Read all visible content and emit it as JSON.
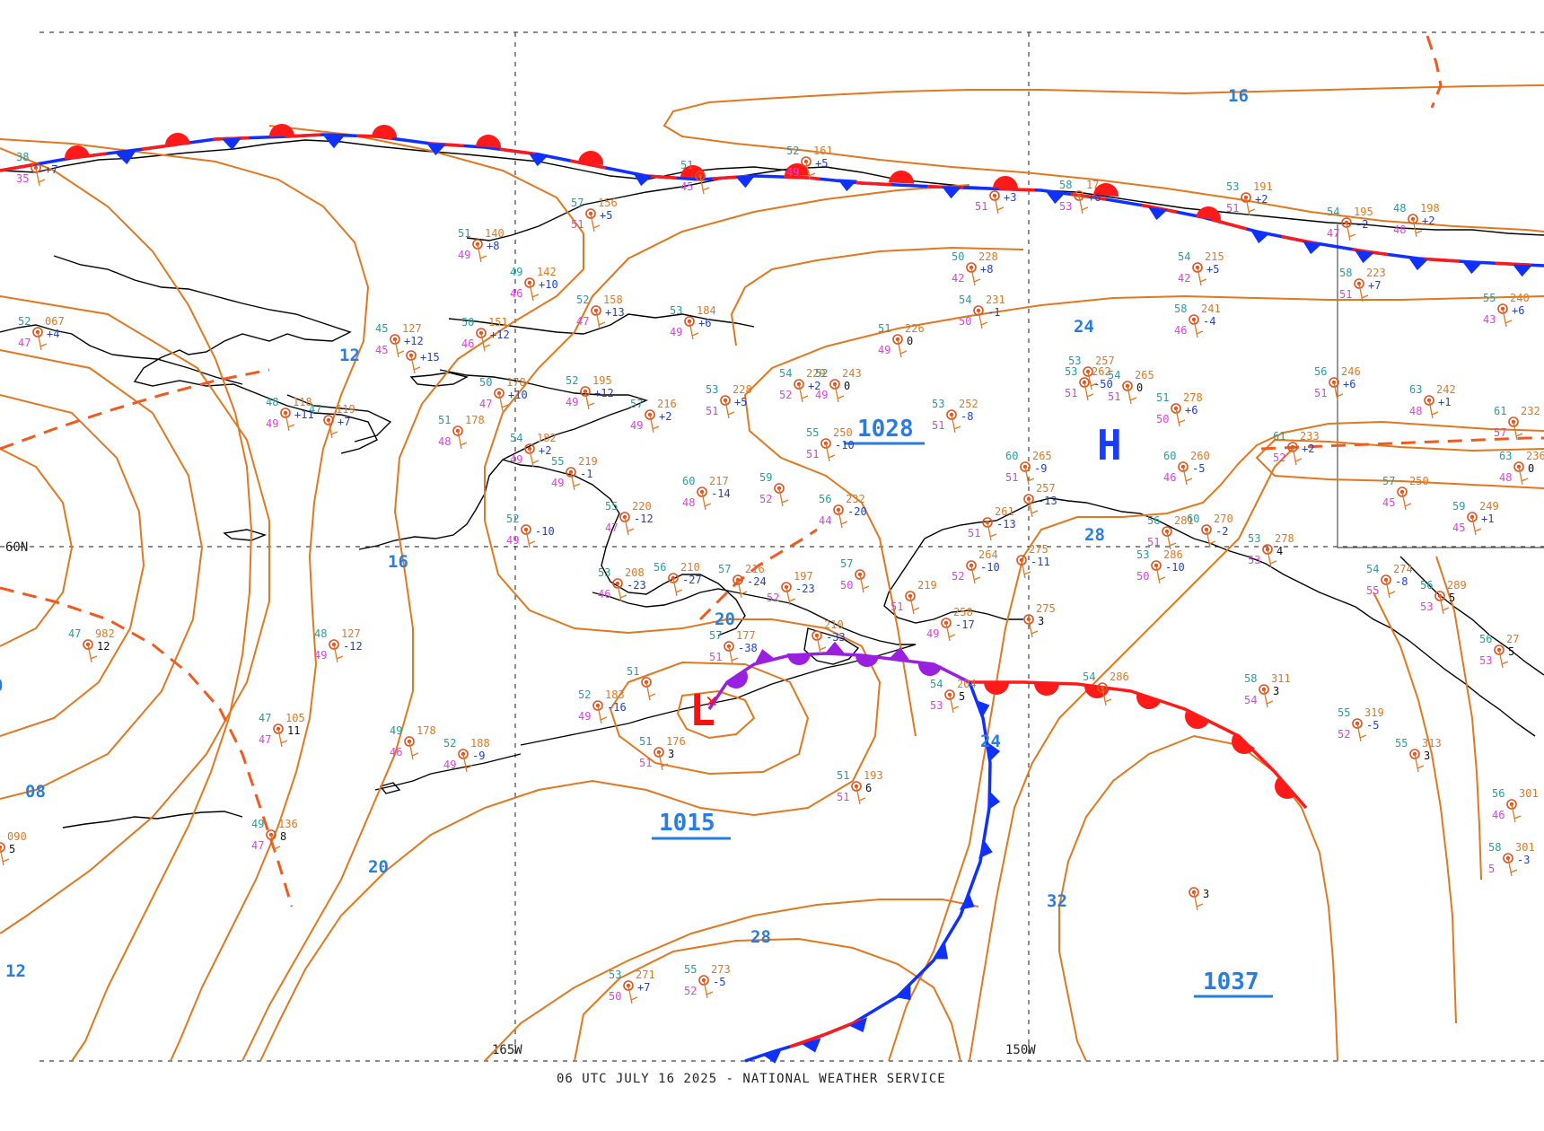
{
  "footer": "06 UTC JULY 16 2025 - NATIONAL WEATHER SERVICE",
  "grid_labels": {
    "lat_60": "60N",
    "lon_165": "165W",
    "lon_150": "150W"
  },
  "isobar_labels": [
    "16",
    "12",
    "16",
    "24",
    "28",
    "20",
    "20",
    "24",
    "32",
    "28",
    "08",
    "12",
    "20",
    "0"
  ],
  "pressure_centers": {
    "high_letter": "H",
    "low_letter": "L",
    "high_1028": "1028",
    "low_1015": "1015",
    "high_1037": "1037"
  },
  "colors": {
    "isobar": "#e07820",
    "warm_front": "#ff1a1a",
    "cold_front": "#1030ff",
    "occluded_front": "#9a20e0",
    "high": "#1a3cff",
    "low": "#ff1010",
    "temp": "#20a0a0",
    "dewpoint": "#e040e0",
    "pressure": "#e07820",
    "tendency": "#2040d0"
  },
  "stations": [
    {
      "t": "38",
      "p": "",
      "td": "35",
      "tend": "+7"
    },
    {
      "t": "52",
      "p": "067",
      "td": "47",
      "tend": "+4"
    },
    {
      "t": "51",
      "p": "140",
      "td": "49",
      "tend": "+8"
    },
    {
      "t": "57",
      "p": "156",
      "td": "51",
      "tend": "+5"
    },
    {
      "t": "52",
      "p": "161",
      "td": "49",
      "tend": "+5"
    },
    {
      "t": "51",
      "p": "",
      "td": "45",
      "tend": ""
    },
    {
      "t": "49",
      "p": "142",
      "td": "46",
      "tend": "+10"
    },
    {
      "t": "52",
      "p": "158",
      "td": "47",
      "tend": "+13"
    },
    {
      "t": "53",
      "p": "184",
      "td": "49",
      "tend": "+6"
    },
    {
      "t": "45",
      "p": "127",
      "td": "45",
      "tend": "+12"
    },
    {
      "t": "",
      "p": "",
      "td": "",
      "tend": "+15"
    },
    {
      "t": "50",
      "p": "151",
      "td": "46",
      "tend": "+12"
    },
    {
      "t": "50",
      "p": "178",
      "td": "47",
      "tend": "+10"
    },
    {
      "t": "52",
      "p": "195",
      "td": "49",
      "tend": "+12"
    },
    {
      "t": "48",
      "p": "118",
      "td": "49",
      "tend": "+11"
    },
    {
      "t": "47",
      "p": "119",
      "td": "",
      "tend": "+7"
    },
    {
      "t": "51",
      "p": "178",
      "td": "48",
      "tend": ""
    },
    {
      "t": "54",
      "p": "182",
      "td": "49",
      "tend": "+2"
    },
    {
      "t": "57",
      "p": "216",
      "td": "49",
      "tend": "+2"
    },
    {
      "t": "53",
      "p": "228",
      "td": "51",
      "tend": "+5"
    },
    {
      "t": "54",
      "p": "229",
      "td": "52",
      "tend": "+2"
    },
    {
      "t": "52",
      "p": "243",
      "td": "49",
      "tend": "0"
    },
    {
      "t": "55",
      "p": "219",
      "td": "49",
      "tend": "-1"
    },
    {
      "t": "52",
      "p": "",
      "td": "49",
      "tend": "-10"
    },
    {
      "t": "60",
      "p": "217",
      "td": "48",
      "tend": "-14"
    },
    {
      "t": "59",
      "p": "",
      "td": "52",
      "tend": ""
    },
    {
      "t": "55",
      "p": "220",
      "td": "47",
      "tend": "-12"
    },
    {
      "t": "55",
      "p": "250",
      "td": "51",
      "tend": "-10"
    },
    {
      "t": "56",
      "p": "232",
      "td": "44",
      "tend": "-20"
    },
    {
      "t": "51",
      "p": "226",
      "td": "49",
      "tend": "0"
    },
    {
      "t": "53",
      "p": "252",
      "td": "51",
      "tend": "-8"
    },
    {
      "t": "50",
      "p": "228",
      "td": "42",
      "tend": "+8"
    },
    {
      "t": "54",
      "p": "231",
      "td": "50",
      "tend": "-1"
    },
    {
      "t": "",
      "p": "",
      "td": "51",
      "tend": "+3"
    },
    {
      "t": "58",
      "p": "17",
      "td": "53",
      "tend": "+6"
    },
    {
      "t": "53",
      "p": "191",
      "td": "51",
      "tend": "+2"
    },
    {
      "t": "54",
      "p": "215",
      "td": "42",
      "tend": "+5"
    },
    {
      "t": "58",
      "p": "241",
      "td": "46",
      "tend": "-4"
    },
    {
      "t": "53",
      "p": "262",
      "td": "51",
      "tend": "-50"
    },
    {
      "t": "53",
      "p": "257",
      "td": "",
      "tend": ""
    },
    {
      "t": "54",
      "p": "265",
      "td": "51",
      "tend": "0"
    },
    {
      "t": "51",
      "p": "278",
      "td": "50",
      "tend": "+6"
    },
    {
      "t": "60",
      "p": "265",
      "td": "51",
      "tend": "-9"
    },
    {
      "t": "60",
      "p": "260",
      "td": "46",
      "tend": "-5"
    },
    {
      "t": "54",
      "p": "195",
      "td": "47",
      "tend": "-2"
    },
    {
      "t": "48",
      "p": "198",
      "td": "48",
      "tend": "+2"
    },
    {
      "t": "58",
      "p": "223",
      "td": "51",
      "tend": "+7"
    },
    {
      "t": "56",
      "p": "246",
      "td": "51",
      "tend": "+6"
    },
    {
      "t": "63",
      "p": "242",
      "td": "48",
      "tend": "+1"
    },
    {
      "t": "55",
      "p": "240",
      "td": "43",
      "tend": "+6"
    },
    {
      "t": "61",
      "p": "233",
      "td": "52",
      "tend": "+2"
    },
    {
      "t": "61",
      "p": "232",
      "td": "57",
      "tend": ""
    },
    {
      "t": "63",
      "p": "236",
      "td": "48",
      "tend": "0"
    },
    {
      "t": "57",
      "p": "250",
      "td": "45",
      "tend": ""
    },
    {
      "t": "59",
      "p": "249",
      "td": "45",
      "tend": "+1"
    },
    {
      "t": "53",
      "p": "208",
      "td": "46",
      "tend": "-23"
    },
    {
      "t": "56",
      "p": "210",
      "td": "",
      "tend": "-27"
    },
    {
      "t": "57",
      "p": "216",
      "td": "",
      "tend": "-24"
    },
    {
      "t": "",
      "p": "197",
      "td": "52",
      "tend": "-23"
    },
    {
      "t": "57",
      "p": "177",
      "td": "51",
      "tend": "-38"
    },
    {
      "t": "",
      "p": "210",
      "td": "",
      "tend": "-33"
    },
    {
      "t": "51",
      "p": "",
      "td": "",
      "tend": ""
    },
    {
      "t": "52",
      "p": "183",
      "td": "49",
      "tend": "-16"
    },
    {
      "t": "51",
      "p": "176",
      "td": "51",
      "tend": "3"
    },
    {
      "t": "54",
      "p": "204",
      "td": "53",
      "tend": "5"
    },
    {
      "t": "51",
      "p": "193",
      "td": "51",
      "tend": "6"
    },
    {
      "t": "47",
      "p": "982",
      "td": "",
      "tend": "12"
    },
    {
      "t": "48",
      "p": "127",
      "td": "49",
      "tend": "-12"
    },
    {
      "t": "47",
      "p": "105",
      "td": "47",
      "tend": "11"
    },
    {
      "t": "49",
      "p": "178",
      "td": "46",
      "tend": ""
    },
    {
      "t": "52",
      "p": "188",
      "td": "49",
      "tend": "-9"
    },
    {
      "t": "49",
      "p": "136",
      "td": "47",
      "tend": "8"
    },
    {
      "t": "",
      "p": "090",
      "td": "",
      "tend": "5"
    },
    {
      "t": "53",
      "p": "271",
      "td": "50",
      "tend": "+7"
    },
    {
      "t": "55",
      "p": "273",
      "td": "52",
      "tend": "-5"
    },
    {
      "t": "54",
      "p": "286",
      "td": "",
      "tend": ""
    },
    {
      "t": "58",
      "p": "311",
      "td": "54",
      "tend": "3"
    },
    {
      "t": "55",
      "p": "319",
      "td": "52",
      "tend": "-5"
    },
    {
      "t": "55",
      "p": "313",
      "td": "",
      "tend": "3"
    },
    {
      "t": "",
      "p": "",
      "td": "",
      "tend": "3"
    },
    {
      "t": "53",
      "p": "286",
      "td": "50",
      "tend": "-10"
    },
    {
      "t": "56",
      "p": "281",
      "td": "51",
      "tend": ""
    },
    {
      "t": "60",
      "p": "270",
      "td": "",
      "tend": "-2"
    },
    {
      "t": "53",
      "p": "278",
      "td": "53",
      "tend": "4"
    },
    {
      "t": "56",
      "p": "289",
      "td": "53",
      "tend": "5"
    },
    {
      "t": "54",
      "p": "274",
      "td": "55",
      "tend": "-8"
    },
    {
      "t": "57",
      "p": "",
      "td": "50",
      "tend": ""
    },
    {
      "t": "",
      "p": "219",
      "td": "51",
      "tend": ""
    },
    {
      "t": "",
      "p": "258",
      "td": "49",
      "tend": "-17"
    },
    {
      "t": "",
      "p": "264",
      "td": "52",
      "tend": "-10"
    },
    {
      "t": "",
      "p": "261",
      "td": "51",
      "tend": "-13"
    },
    {
      "t": "",
      "p": "275",
      "td": "",
      "tend": "-11"
    },
    {
      "t": "",
      "p": "275",
      "td": "",
      "tend": "3"
    },
    {
      "t": "",
      "p": "257",
      "td": "",
      "tend": "-13"
    },
    {
      "t": "56",
      "p": "301",
      "td": "46",
      "tend": ""
    },
    {
      "t": "58",
      "p": "301",
      "td": "5",
      "tend": "-3"
    },
    {
      "t": "56",
      "p": "27",
      "td": "53",
      "tend": "5"
    }
  ]
}
